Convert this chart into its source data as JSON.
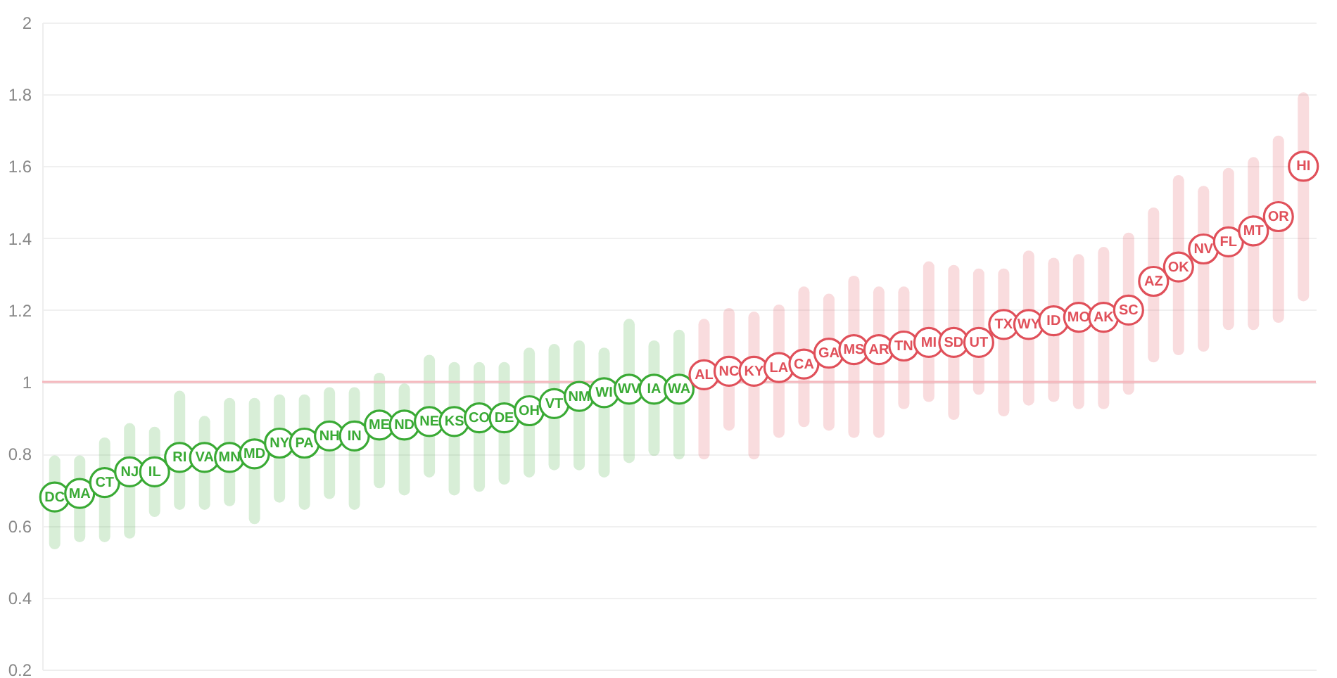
{
  "chart_data": {
    "type": "scatter",
    "categories": [
      "DC",
      "MA",
      "CT",
      "NJ",
      "IL",
      "RI",
      "VA",
      "MN",
      "MD",
      "NY",
      "PA",
      "NH",
      "IN",
      "ME",
      "ND",
      "NE",
      "KS",
      "CO",
      "DE",
      "OH",
      "VT",
      "NM",
      "WI",
      "WV",
      "IA",
      "WA",
      "AL",
      "NC",
      "KY",
      "LA",
      "CA",
      "GA",
      "MS",
      "AR",
      "TN",
      "MI",
      "SD",
      "UT",
      "TX",
      "WY",
      "ID",
      "MO",
      "AK",
      "SC",
      "AZ",
      "OK",
      "NV",
      "FL",
      "MT",
      "OR",
      "HI"
    ],
    "values": [
      0.68,
      0.69,
      0.72,
      0.75,
      0.75,
      0.79,
      0.79,
      0.79,
      0.8,
      0.83,
      0.83,
      0.85,
      0.85,
      0.88,
      0.88,
      0.89,
      0.89,
      0.9,
      0.9,
      0.92,
      0.94,
      0.96,
      0.97,
      0.98,
      0.98,
      0.98,
      1.02,
      1.03,
      1.03,
      1.04,
      1.05,
      1.08,
      1.09,
      1.09,
      1.1,
      1.11,
      1.11,
      1.11,
      1.16,
      1.16,
      1.17,
      1.18,
      1.18,
      1.2,
      1.28,
      1.32,
      1.37,
      1.39,
      1.42,
      1.46,
      1.6
    ],
    "errors": [
      [
        0.55,
        0.78
      ],
      [
        0.57,
        0.78
      ],
      [
        0.57,
        0.83
      ],
      [
        0.58,
        0.87
      ],
      [
        0.64,
        0.86
      ],
      [
        0.66,
        0.96
      ],
      [
        0.66,
        0.89
      ],
      [
        0.67,
        0.94
      ],
      [
        0.62,
        0.94
      ],
      [
        0.68,
        0.95
      ],
      [
        0.66,
        0.95
      ],
      [
        0.69,
        0.97
      ],
      [
        0.66,
        0.97
      ],
      [
        0.72,
        1.01
      ],
      [
        0.7,
        0.98
      ],
      [
        0.75,
        1.06
      ],
      [
        0.7,
        1.04
      ],
      [
        0.71,
        1.04
      ],
      [
        0.73,
        1.04
      ],
      [
        0.75,
        1.08
      ],
      [
        0.77,
        1.09
      ],
      [
        0.77,
        1.1
      ],
      [
        0.75,
        1.08
      ],
      [
        0.79,
        1.16
      ],
      [
        0.81,
        1.1
      ],
      [
        0.8,
        1.13
      ],
      [
        0.8,
        1.16
      ],
      [
        0.88,
        1.19
      ],
      [
        0.8,
        1.18
      ],
      [
        0.86,
        1.2
      ],
      [
        0.89,
        1.25
      ],
      [
        0.88,
        1.23
      ],
      [
        0.86,
        1.28
      ],
      [
        0.86,
        1.25
      ],
      [
        0.94,
        1.25
      ],
      [
        0.96,
        1.32
      ],
      [
        0.91,
        1.31
      ],
      [
        0.98,
        1.3
      ],
      [
        0.92,
        1.3
      ],
      [
        0.95,
        1.35
      ],
      [
        0.96,
        1.33
      ],
      [
        0.94,
        1.34
      ],
      [
        0.94,
        1.36
      ],
      [
        0.98,
        1.4
      ],
      [
        1.07,
        1.47
      ],
      [
        1.09,
        1.56
      ],
      [
        1.1,
        1.53
      ],
      [
        1.16,
        1.58
      ],
      [
        1.16,
        1.61
      ],
      [
        1.18,
        1.67
      ],
      [
        1.24,
        1.79
      ]
    ],
    "colors": [
      "#3aaa35",
      "#3aaa35",
      "#3aaa35",
      "#3aaa35",
      "#3aaa35",
      "#3aaa35",
      "#3aaa35",
      "#3aaa35",
      "#3aaa35",
      "#3aaa35",
      "#3aaa35",
      "#3aaa35",
      "#3aaa35",
      "#3aaa35",
      "#3aaa35",
      "#3aaa35",
      "#3aaa35",
      "#3aaa35",
      "#3aaa35",
      "#3aaa35",
      "#3aaa35",
      "#3aaa35",
      "#3aaa35",
      "#3aaa35",
      "#3aaa35",
      "#3aaa35",
      "#e0505a",
      "#e0505a",
      "#e0505a",
      "#e0505a",
      "#e0505a",
      "#e0505a",
      "#e0505a",
      "#e0505a",
      "#e0505a",
      "#e0505a",
      "#e0505a",
      "#e0505a",
      "#e0505a",
      "#e0505a",
      "#e0505a",
      "#e0505a",
      "#e0505a",
      "#e0505a",
      "#e0505a",
      "#e0505a",
      "#e0505a",
      "#e0505a",
      "#e0505a",
      "#e0505a",
      "#e0505a"
    ],
    "ylim": [
      0.2,
      2
    ],
    "yticks": [
      0.2,
      0.4,
      0.6,
      0.8,
      {
        "value": 1,
        "label": "1"
      },
      1.2,
      1.4,
      1.6,
      1.8,
      {
        "value": 2,
        "label": "2"
      }
    ],
    "ref_lines": [
      {
        "axis": "y",
        "value": 1,
        "color": "#f5b8be"
      }
    ],
    "grid": "y",
    "tick_labels": "y",
    "marker": "circle"
  }
}
